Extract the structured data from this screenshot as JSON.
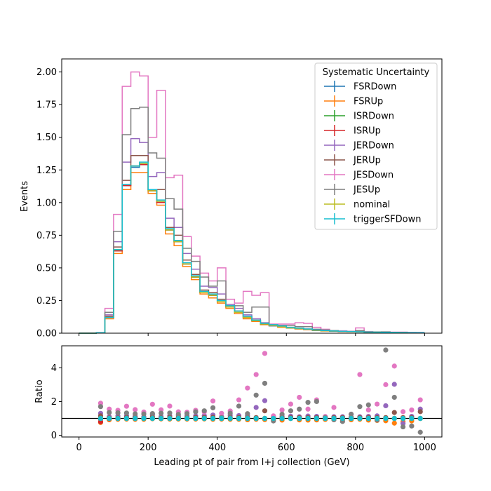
{
  "chart_data": [
    {
      "type": "line",
      "drawstyle": "steps",
      "ylabel": "Events",
      "xlim": [
        -50,
        1050
      ],
      "ylim": [
        0,
        2.1
      ],
      "yticks": [
        "0.00",
        "0.25",
        "0.50",
        "0.75",
        "1.00",
        "1.25",
        "1.50",
        "1.75",
        "2.00"
      ],
      "bin_edges": [
        0,
        25,
        50,
        75,
        100,
        125,
        150,
        175,
        200,
        225,
        250,
        275,
        300,
        325,
        350,
        375,
        400,
        425,
        450,
        475,
        500,
        525,
        550,
        575,
        600,
        625,
        650,
        675,
        700,
        725,
        750,
        775,
        800,
        825,
        850,
        875,
        900,
        925,
        950,
        975,
        1000
      ],
      "legend": {
        "title": "Systematic Uncertainty",
        "position": "upper right"
      },
      "grid": false,
      "series": [
        {
          "name": "FSRDown",
          "color": "#1f77b4",
          "values": [
            0,
            0,
            0.004,
            0.12,
            0.64,
            1.13,
            1.27,
            1.3,
            1.09,
            1.01,
            0.79,
            0.7,
            0.53,
            0.43,
            0.31,
            0.29,
            0.24,
            0.2,
            0.16,
            0.12,
            0.095,
            0.07,
            0.06,
            0.05,
            0.04,
            0.035,
            0.03,
            0.022,
            0.018,
            0.016,
            0.014,
            0.012,
            0.01,
            0.009,
            0.008,
            0.007,
            0.006,
            0.005,
            0.004,
            0.004
          ]
        },
        {
          "name": "FSRUp",
          "color": "#ff7f0e",
          "values": [
            0,
            0,
            0.004,
            0.11,
            0.61,
            1.1,
            1.23,
            1.23,
            1.07,
            0.98,
            0.76,
            0.67,
            0.51,
            0.41,
            0.3,
            0.27,
            0.23,
            0.19,
            0.15,
            0.11,
            0.09,
            0.065,
            0.055,
            0.045,
            0.04,
            0.032,
            0.027,
            0.02,
            0.017,
            0.015,
            0.013,
            0.011,
            0.01,
            0.008,
            0.007,
            0.006,
            0.005,
            0.005,
            0.004,
            0.004
          ]
        },
        {
          "name": "ISRDown",
          "color": "#2ca02c",
          "values": [
            0,
            0,
            0.004,
            0.12,
            0.64,
            1.14,
            1.28,
            1.29,
            1.09,
            1.0,
            0.79,
            0.7,
            0.53,
            0.43,
            0.31,
            0.29,
            0.24,
            0.2,
            0.16,
            0.12,
            0.095,
            0.07,
            0.06,
            0.05,
            0.04,
            0.035,
            0.03,
            0.022,
            0.018,
            0.016,
            0.014,
            0.012,
            0.01,
            0.009,
            0.008,
            0.007,
            0.006,
            0.005,
            0.004,
            0.004
          ]
        },
        {
          "name": "ISRUp",
          "color": "#d62728",
          "values": [
            0,
            0,
            0.004,
            0.12,
            0.63,
            1.13,
            1.28,
            1.29,
            1.09,
            1.0,
            0.79,
            0.7,
            0.53,
            0.43,
            0.31,
            0.29,
            0.24,
            0.2,
            0.16,
            0.12,
            0.095,
            0.07,
            0.06,
            0.05,
            0.04,
            0.035,
            0.03,
            0.022,
            0.018,
            0.016,
            0.014,
            0.012,
            0.01,
            0.009,
            0.008,
            0.007,
            0.006,
            0.005,
            0.004,
            0.004
          ]
        },
        {
          "name": "JERDown",
          "color": "#9467bd",
          "values": [
            0,
            0,
            0.004,
            0.14,
            0.7,
            1.31,
            1.49,
            1.46,
            1.2,
            1.23,
            0.88,
            0.81,
            0.61,
            0.49,
            0.36,
            0.35,
            0.3,
            0.22,
            0.19,
            0.14,
            0.11,
            0.08,
            0.065,
            0.055,
            0.045,
            0.038,
            0.032,
            0.024,
            0.02,
            0.017,
            0.015,
            0.013,
            0.011,
            0.009,
            0.008,
            0.007,
            0.006,
            0.005,
            0.004,
            0.004
          ]
        },
        {
          "name": "JERUp",
          "color": "#8c564b",
          "values": [
            0,
            0,
            0.004,
            0.13,
            0.66,
            1.17,
            1.36,
            1.36,
            1.1,
            1.1,
            0.81,
            0.75,
            0.56,
            0.45,
            0.33,
            0.31,
            0.26,
            0.21,
            0.17,
            0.13,
            0.1,
            0.075,
            0.06,
            0.05,
            0.042,
            0.036,
            0.03,
            0.023,
            0.019,
            0.016,
            0.014,
            0.012,
            0.01,
            0.009,
            0.008,
            0.007,
            0.006,
            0.005,
            0.004,
            0.004
          ]
        },
        {
          "name": "JESDown",
          "color": "#e377c2",
          "values": [
            0,
            0,
            0.004,
            0.19,
            0.91,
            1.89,
            2.0,
            1.97,
            1.5,
            1.86,
            1.19,
            1.21,
            0.74,
            0.59,
            0.46,
            0.4,
            0.5,
            0.26,
            0.23,
            0.32,
            0.29,
            0.31,
            0.07,
            0.07,
            0.07,
            0.08,
            0.075,
            0.045,
            0.03,
            0.02,
            0.018,
            0.015,
            0.04,
            0.012,
            0.01,
            0.009,
            0.008,
            0.008,
            0.006,
            0.006
          ]
        },
        {
          "name": "JESUp",
          "color": "#7f7f7f",
          "values": [
            0,
            0,
            0.004,
            0.16,
            0.78,
            1.52,
            1.72,
            1.73,
            1.38,
            1.34,
            1.03,
            0.95,
            0.65,
            0.55,
            0.43,
            0.36,
            0.4,
            0.21,
            0.21,
            0.16,
            0.2,
            0.2,
            0.055,
            0.06,
            0.06,
            0.05,
            0.05,
            0.03,
            0.025,
            0.02,
            0.015,
            0.013,
            0.02,
            0.01,
            0.009,
            0.01,
            0.007,
            0.006,
            0.005,
            0.004
          ]
        },
        {
          "name": "nominal",
          "color": "#bcbd22",
          "values": [
            0,
            0,
            0.004,
            0.12,
            0.64,
            1.14,
            1.28,
            1.3,
            1.09,
            1.01,
            0.79,
            0.7,
            0.53,
            0.43,
            0.31,
            0.29,
            0.24,
            0.2,
            0.16,
            0.12,
            0.095,
            0.07,
            0.06,
            0.05,
            0.04,
            0.035,
            0.03,
            0.022,
            0.018,
            0.016,
            0.014,
            0.012,
            0.01,
            0.009,
            0.008,
            0.007,
            0.006,
            0.005,
            0.004,
            0.004
          ]
        },
        {
          "name": "triggerSFDown",
          "color": "#17becf",
          "values": [
            0,
            0,
            0.004,
            0.12,
            0.64,
            1.14,
            1.28,
            1.31,
            1.1,
            1.02,
            0.8,
            0.71,
            0.54,
            0.44,
            0.32,
            0.3,
            0.25,
            0.21,
            0.17,
            0.13,
            0.1,
            0.075,
            0.065,
            0.055,
            0.045,
            0.038,
            0.032,
            0.024,
            0.02,
            0.017,
            0.015,
            0.013,
            0.011,
            0.009,
            0.008,
            0.007,
            0.006,
            0.005,
            0.004,
            0.004
          ]
        }
      ]
    },
    {
      "type": "scatter",
      "xlabel": "Leading pt of pair from l+j collection (GeV)",
      "ylabel": "Ratio",
      "xlim": [
        -50,
        1050
      ],
      "ylim": [
        -0.1,
        5.3
      ],
      "xticks": [
        "0",
        "200",
        "400",
        "600",
        "800",
        "1000"
      ],
      "yticks": [
        "0",
        "2",
        "4"
      ],
      "reference_line": 1,
      "x": [
        62.5,
        87.5,
        112.5,
        137.5,
        162.5,
        187.5,
        212.5,
        237.5,
        262.5,
        287.5,
        312.5,
        337.5,
        362.5,
        387.5,
        412.5,
        437.5,
        462.5,
        487.5,
        512.5,
        537.5,
        562.5,
        587.5,
        612.5,
        637.5,
        662.5,
        687.5,
        712.5,
        737.5,
        762.5,
        787.5,
        812.5,
        837.5,
        862.5,
        887.5,
        912.5,
        937.5,
        962.5,
        987.5
      ],
      "series": [
        {
          "name": "FSRDown",
          "color": "#1f77b4",
          "values": [
            0.95,
            1.0,
            0.99,
            0.99,
            1.0,
            1.0,
            1.0,
            1.0,
            1.0,
            1.0,
            1.0,
            1.0,
            1.0,
            1.0,
            1.0,
            1.0,
            1.0,
            1.0,
            1.0,
            1.0,
            1.0,
            1.0,
            1.0,
            1.0,
            1.0,
            1.0,
            1.0,
            1.0,
            1.0,
            1.0,
            1.0,
            1.0,
            1.0,
            1.0,
            1.0,
            1.0,
            1.0,
            1.0
          ]
        },
        {
          "name": "FSRUp",
          "color": "#ff7f0e",
          "values": [
            0.76,
            0.92,
            0.95,
            0.96,
            0.95,
            0.95,
            0.98,
            0.97,
            0.96,
            0.96,
            0.96,
            0.96,
            0.97,
            0.95,
            0.96,
            0.95,
            0.95,
            0.92,
            0.95,
            0.93,
            0.92,
            0.9,
            1.0,
            0.91,
            0.9,
            0.91,
            0.94,
            0.94,
            0.93,
            0.92,
            0.95,
            0.9,
            0.88,
            0.86,
            0.72,
            0.8,
            0.85,
            1.0
          ]
        },
        {
          "name": "ISRDown",
          "color": "#2ca02c",
          "values": [
            1.0,
            1.0,
            1.0,
            1.0,
            0.99,
            1.0,
            1.0,
            1.0,
            1.0,
            1.0,
            1.0,
            1.0,
            1.0,
            1.0,
            1.0,
            1.0,
            1.0,
            1.0,
            1.0,
            1.0,
            1.0,
            1.0,
            1.0,
            1.0,
            1.0,
            1.0,
            1.0,
            1.0,
            1.0,
            1.0,
            1.0,
            1.0,
            1.0,
            1.0,
            1.0,
            1.0,
            1.0,
            1.0
          ]
        },
        {
          "name": "ISRUp",
          "color": "#d62728",
          "values": [
            0.8,
            0.98,
            0.99,
            1.0,
            0.99,
            1.0,
            1.0,
            1.0,
            1.0,
            1.0,
            1.0,
            1.0,
            1.0,
            1.0,
            1.0,
            1.0,
            1.0,
            1.0,
            1.0,
            1.0,
            1.0,
            1.0,
            1.0,
            1.0,
            1.0,
            1.0,
            1.0,
            1.0,
            1.0,
            1.0,
            1.0,
            1.0,
            1.0,
            1.0,
            1.0,
            1.0,
            1.0,
            1.0
          ]
        },
        {
          "name": "JERDown",
          "color": "#9467bd",
          "values": [
            1.3,
            1.1,
            1.15,
            1.16,
            1.12,
            1.1,
            1.22,
            1.11,
            1.16,
            1.15,
            1.14,
            1.15,
            1.16,
            1.2,
            1.1,
            1.19,
            1.17,
            1.16,
            1.65,
            2.05,
            1.1,
            1.12,
            1.13,
            1.1,
            1.14,
            1.12,
            1.11,
            1.1,
            1.1,
            1.08,
            1.1,
            1.12,
            1.15,
            1.75,
            3.02,
            0.7,
            1.12,
            1.55
          ]
        },
        {
          "name": "JERUp",
          "color": "#8c564b",
          "values": [
            1.15,
            1.03,
            1.03,
            1.06,
            1.05,
            1.01,
            1.09,
            1.03,
            1.07,
            1.06,
            1.04,
            1.06,
            1.06,
            1.07,
            1.04,
            1.05,
            1.06,
            1.05,
            1.05,
            1.45,
            1.05,
            1.05,
            1.05,
            1.05,
            1.05,
            1.05,
            1.05,
            1.05,
            1.05,
            1.05,
            1.05,
            1.05,
            1.05,
            1.05,
            1.35,
            1.05,
            1.05,
            1.4
          ]
        },
        {
          "name": "JESDown",
          "color": "#e377c2",
          "values": [
            1.9,
            1.55,
            1.48,
            1.72,
            1.52,
            1.38,
            1.84,
            1.51,
            1.73,
            1.39,
            1.37,
            1.48,
            1.38,
            2.03,
            1.3,
            1.44,
            2.1,
            2.8,
            3.6,
            4.85,
            1.15,
            1.5,
            1.85,
            2.25,
            1.55,
            2.1,
            1.1,
            1.65,
            1.0,
            1.25,
            3.6,
            1.5,
            1.85,
            3.0,
            4.1,
            1.4,
            1.5,
            2.1
          ]
        },
        {
          "name": "JESUp",
          "color": "#7f7f7f",
          "values": [
            1.7,
            1.35,
            1.33,
            1.32,
            1.27,
            1.26,
            1.29,
            1.31,
            1.32,
            1.24,
            1.28,
            1.39,
            1.45,
            1.63,
            1.05,
            1.31,
            1.73,
            1.28,
            2.38,
            3.08,
            0.85,
            1.25,
            1.45,
            1.55,
            1.95,
            2.0,
            1.05,
            0.92,
            0.82,
            1.25,
            1.7,
            1.8,
            0.9,
            5.05,
            2.25,
            0.5,
            0.55,
            0.18
          ]
        },
        {
          "name": "nominal",
          "color": "#bcbd22",
          "values": [
            1.0,
            1.0,
            1.0,
            1.0,
            1.0,
            1.0,
            1.0,
            1.0,
            1.0,
            1.0,
            1.0,
            1.0,
            1.0,
            1.0,
            1.0,
            1.0,
            1.0,
            1.0,
            1.0,
            1.0,
            1.0,
            1.0,
            1.0,
            1.0,
            1.0,
            1.0,
            1.0,
            1.0,
            1.0,
            1.0,
            1.0,
            1.0,
            1.0,
            1.0,
            1.0,
            1.0,
            1.0,
            1.0
          ]
        },
        {
          "name": "triggerSFDown",
          "color": "#17becf",
          "values": [
            1.0,
            1.0,
            1.0,
            1.0,
            1.0,
            1.0,
            1.0,
            1.0,
            1.0,
            1.0,
            1.0,
            1.0,
            1.0,
            1.0,
            1.0,
            1.0,
            1.0,
            1.0,
            1.0,
            1.0,
            1.0,
            1.0,
            1.0,
            1.0,
            1.0,
            1.0,
            1.0,
            1.0,
            1.0,
            1.0,
            1.0,
            1.0,
            1.0,
            1.0,
            1.0,
            1.0,
            1.0,
            1.0
          ]
        }
      ]
    }
  ]
}
